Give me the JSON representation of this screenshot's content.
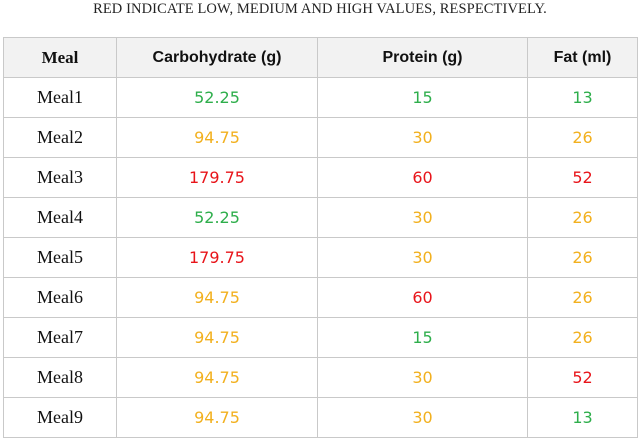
{
  "caption": "RED INDICATE LOW, MEDIUM AND HIGH VALUES, RESPECTIVELY.",
  "colors": {
    "low": "#2eae4b",
    "medium": "#f2b01e",
    "high": "#e8141a"
  },
  "table": {
    "headers": [
      "Meal",
      "Carbohydrate (g)",
      "Protein (g)",
      "Fat (ml)"
    ],
    "rows": [
      {
        "meal": "Meal1",
        "carb": {
          "value": "52.25",
          "level": "low"
        },
        "protein": {
          "value": "15",
          "level": "low"
        },
        "fat": {
          "value": "13",
          "level": "low"
        }
      },
      {
        "meal": "Meal2",
        "carb": {
          "value": "94.75",
          "level": "medium"
        },
        "protein": {
          "value": "30",
          "level": "medium"
        },
        "fat": {
          "value": "26",
          "level": "medium"
        }
      },
      {
        "meal": "Meal3",
        "carb": {
          "value": "179.75",
          "level": "high"
        },
        "protein": {
          "value": "60",
          "level": "high"
        },
        "fat": {
          "value": "52",
          "level": "high"
        }
      },
      {
        "meal": "Meal4",
        "carb": {
          "value": "52.25",
          "level": "low"
        },
        "protein": {
          "value": "30",
          "level": "medium"
        },
        "fat": {
          "value": "26",
          "level": "medium"
        }
      },
      {
        "meal": "Meal5",
        "carb": {
          "value": "179.75",
          "level": "high"
        },
        "protein": {
          "value": "30",
          "level": "medium"
        },
        "fat": {
          "value": "26",
          "level": "medium"
        }
      },
      {
        "meal": "Meal6",
        "carb": {
          "value": "94.75",
          "level": "medium"
        },
        "protein": {
          "value": "60",
          "level": "high"
        },
        "fat": {
          "value": "26",
          "level": "medium"
        }
      },
      {
        "meal": "Meal7",
        "carb": {
          "value": "94.75",
          "level": "medium"
        },
        "protein": {
          "value": "15",
          "level": "low"
        },
        "fat": {
          "value": "26",
          "level": "medium"
        }
      },
      {
        "meal": "Meal8",
        "carb": {
          "value": "94.75",
          "level": "medium"
        },
        "protein": {
          "value": "30",
          "level": "medium"
        },
        "fat": {
          "value": "52",
          "level": "high"
        }
      },
      {
        "meal": "Meal9",
        "carb": {
          "value": "94.75",
          "level": "medium"
        },
        "protein": {
          "value": "30",
          "level": "medium"
        },
        "fat": {
          "value": "13",
          "level": "low"
        }
      }
    ]
  }
}
